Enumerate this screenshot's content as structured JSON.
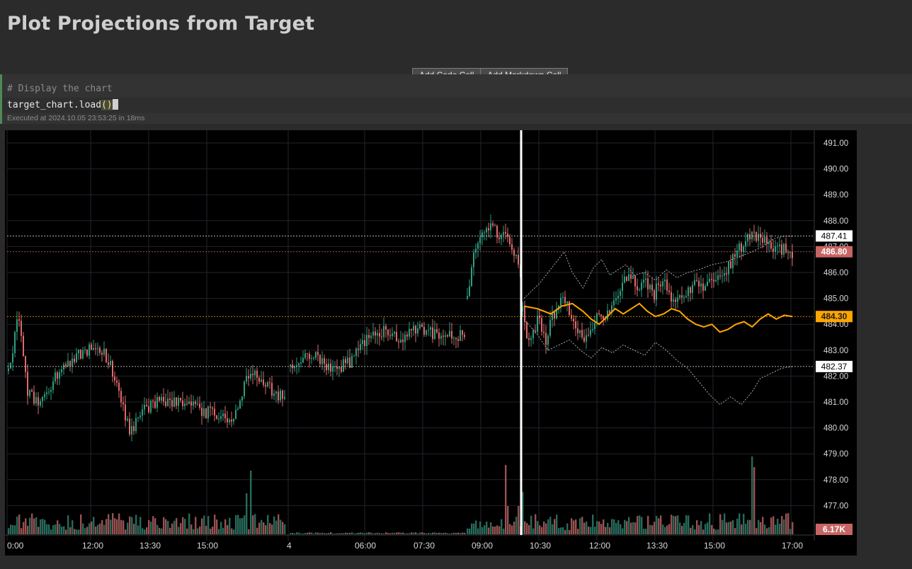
{
  "page": {
    "title": "Plot Projections from Target"
  },
  "toolbar": {
    "add_code_label": "Add Code Cell",
    "add_markdown_label": "Add Markdown Cell"
  },
  "cell": {
    "comment": "# Display the chart",
    "code_prefix": "target_chart.load",
    "code_parens": "()",
    "exec_info": "Executed at 2024.10.05 23:53:25 in 18ms"
  },
  "chart_data": {
    "type": "candlestick",
    "title": "",
    "y_ticks": [
      "491.00",
      "490.00",
      "489.00",
      "488.00",
      "487.00",
      "486.00",
      "485.00",
      "484.00",
      "483.00",
      "482.00",
      "481.00",
      "480.00",
      "479.00",
      "478.00",
      "477.00"
    ],
    "y_range": [
      476.1,
      491.5
    ],
    "x_tick_labels": [
      "0:00",
      "12:00",
      "13:30",
      "15:00",
      "4",
      "06:00",
      "07:30",
      "09:00",
      "10:30",
      "12:00",
      "13:30",
      "15:00",
      "17:00"
    ],
    "price_labels": [
      {
        "value": "487.41",
        "style": "white",
        "color": "#ffffff"
      },
      {
        "value": "486.80",
        "style": "red",
        "color": "#c86464"
      },
      {
        "value": "484.30",
        "style": "orange",
        "color": "#ffa500"
      },
      {
        "value": "482.37",
        "style": "white",
        "color": "#ffffff"
      },
      {
        "value": "6.17K",
        "style": "red",
        "color": "#c86464"
      }
    ],
    "up_color": "#2e9e80",
    "down_color": "#e06a6a",
    "projection_color": "#ffa500",
    "band_color": "#aaaaaa",
    "cursor_color": "#ffffff",
    "projection_center": [
      [
        0,
        484.7
      ],
      [
        5,
        484.6
      ],
      [
        10,
        484.4
      ],
      [
        14,
        484.7
      ],
      [
        18,
        484.8
      ],
      [
        22,
        484.5
      ],
      [
        25,
        484.2
      ],
      [
        28,
        484.0
      ],
      [
        31,
        484.3
      ],
      [
        34,
        484.6
      ],
      [
        37,
        484.4
      ],
      [
        40,
        484.6
      ],
      [
        43,
        484.8
      ],
      [
        46,
        484.5
      ],
      [
        49,
        484.3
      ],
      [
        52,
        484.4
      ],
      [
        55,
        484.6
      ],
      [
        58,
        484.5
      ],
      [
        61,
        484.2
      ],
      [
        64,
        484.0
      ],
      [
        67,
        483.9
      ],
      [
        70,
        484.0
      ],
      [
        73,
        483.7
      ],
      [
        76,
        483.8
      ],
      [
        79,
        484.0
      ],
      [
        82,
        484.1
      ],
      [
        85,
        483.9
      ],
      [
        88,
        484.2
      ],
      [
        91,
        484.4
      ],
      [
        94,
        484.2
      ],
      [
        97,
        484.35
      ],
      [
        100,
        484.3
      ]
    ],
    "projection_upper": [
      [
        0,
        485.0
      ],
      [
        6,
        485.6
      ],
      [
        12,
        486.4
      ],
      [
        15,
        486.8
      ],
      [
        18,
        486.0
      ],
      [
        22,
        485.4
      ],
      [
        26,
        486.2
      ],
      [
        29,
        486.5
      ],
      [
        32,
        485.9
      ],
      [
        35,
        486.1
      ],
      [
        38,
        486.3
      ],
      [
        41,
        485.9
      ],
      [
        45,
        486.0
      ],
      [
        49,
        485.7
      ],
      [
        53,
        486.1
      ],
      [
        57,
        485.8
      ],
      [
        61,
        486.0
      ],
      [
        65,
        486.1
      ],
      [
        70,
        486.3
      ],
      [
        75,
        486.4
      ],
      [
        80,
        486.6
      ],
      [
        85,
        486.8
      ],
      [
        89,
        487.0
      ],
      [
        93,
        487.3
      ],
      [
        97,
        487.4
      ],
      [
        100,
        487.4
      ]
    ],
    "projection_lower": [
      [
        0,
        484.2
      ],
      [
        5,
        483.6
      ],
      [
        9,
        483.0
      ],
      [
        13,
        483.2
      ],
      [
        17,
        483.4
      ],
      [
        21,
        483.0
      ],
      [
        25,
        482.7
      ],
      [
        29,
        483.1
      ],
      [
        33,
        482.9
      ],
      [
        37,
        483.2
      ],
      [
        41,
        483.0
      ],
      [
        45,
        482.8
      ],
      [
        49,
        483.3
      ],
      [
        53,
        483.0
      ],
      [
        57,
        482.6
      ],
      [
        61,
        482.3
      ],
      [
        65,
        481.8
      ],
      [
        69,
        481.3
      ],
      [
        73,
        480.9
      ],
      [
        77,
        481.2
      ],
      [
        81,
        480.9
      ],
      [
        85,
        481.4
      ],
      [
        88,
        481.9
      ],
      [
        92,
        482.1
      ],
      [
        96,
        482.3
      ],
      [
        100,
        482.37
      ]
    ],
    "candles_seed": 20241005
  }
}
